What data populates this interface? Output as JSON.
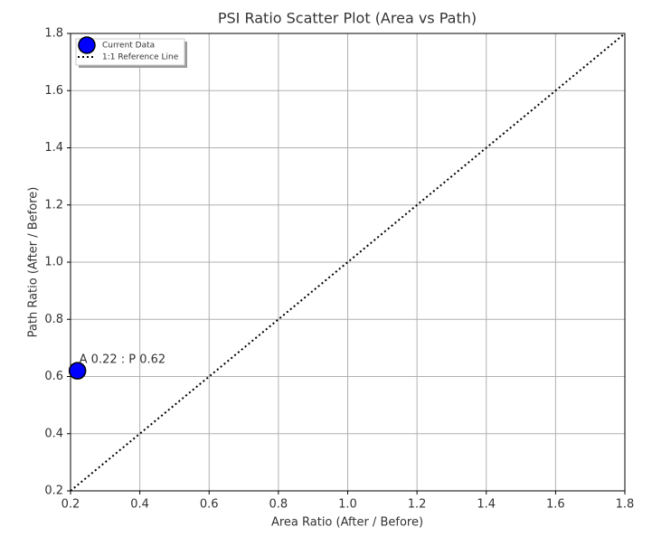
{
  "chart_data": {
    "type": "scatter",
    "title": "PSI Ratio Scatter Plot (Area vs Path)",
    "x_label": "Area Ratio (After / Before)",
    "y_label": "Path Ratio (After / Before)",
    "xlim": [
      0.2,
      1.8
    ],
    "ylim": [
      0.2,
      1.8
    ],
    "xticks": [
      0.2,
      0.4,
      0.6,
      0.8,
      {
        "value": 1,
        "label": "1.0"
      },
      1.2,
      1.4,
      1.6,
      1.8
    ],
    "yticks": [
      0.2,
      0.4,
      0.6,
      0.8,
      {
        "value": 1,
        "label": "1.0"
      },
      1.2,
      1.4,
      1.6,
      1.8
    ],
    "grid": true,
    "legend": "upper left",
    "series": [
      {
        "name": "Current Data",
        "color": "#0000ff",
        "x": [
          0.22
        ],
        "values": [
          0.62
        ],
        "annotation": "A 0.22 : P 0.62"
      },
      {
        "name": "1:1 Reference Line",
        "color": "#000000",
        "linestyle": "dotted",
        "x": [
          0.2,
          1.8
        ],
        "values": [
          0.2,
          1.8
        ]
      }
    ]
  }
}
